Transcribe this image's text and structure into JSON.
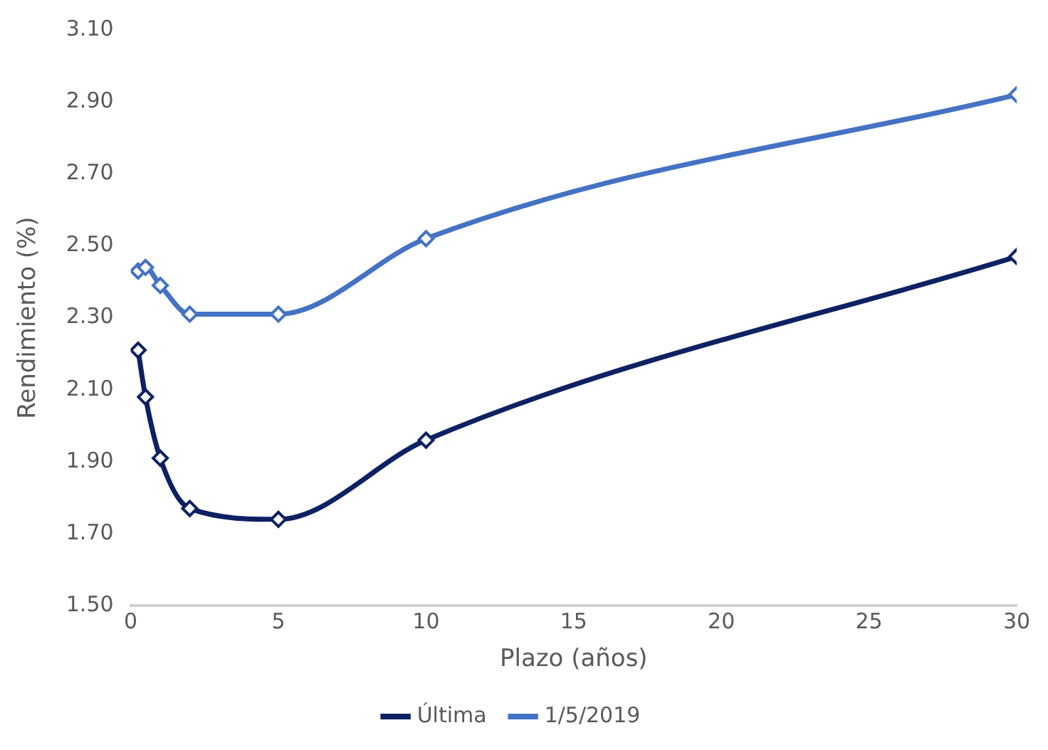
{
  "chart_data": {
    "type": "line",
    "xlabel": "Plazo (años)",
    "ylabel": "Rendimiento (%)",
    "x": [
      0.25,
      0.5,
      1,
      2,
      5,
      10,
      30
    ],
    "series": [
      {
        "name": "Última",
        "color": "#0d2163",
        "values": [
          2.21,
          2.08,
          1.91,
          1.77,
          1.74,
          1.96,
          2.47
        ]
      },
      {
        "name": "1/5/2019",
        "color": "#4472c4",
        "values": [
          2.43,
          2.44,
          2.39,
          2.31,
          2.31,
          2.52,
          2.92
        ]
      }
    ],
    "xlim": [
      0,
      30
    ],
    "xticks": [
      0,
      5,
      10,
      15,
      20,
      25,
      30
    ],
    "ylim": [
      1.5,
      3.1
    ],
    "yticks": [
      {
        "value": 1.5,
        "label": "1.50"
      },
      {
        "value": 1.7,
        "label": "1.70"
      },
      {
        "value": 1.9,
        "label": "1.90"
      },
      {
        "value": 2.1,
        "label": "2.10"
      },
      {
        "value": 2.3,
        "label": "2.30"
      },
      {
        "value": 2.5,
        "label": "2.50"
      },
      {
        "value": 2.7,
        "label": "2.70"
      },
      {
        "value": 2.9,
        "label": "2.90"
      },
      {
        "value": 3.1,
        "label": "3.10"
      }
    ],
    "grid": false,
    "legend": "bottom",
    "marker": "diamond",
    "line_style": "solid"
  }
}
